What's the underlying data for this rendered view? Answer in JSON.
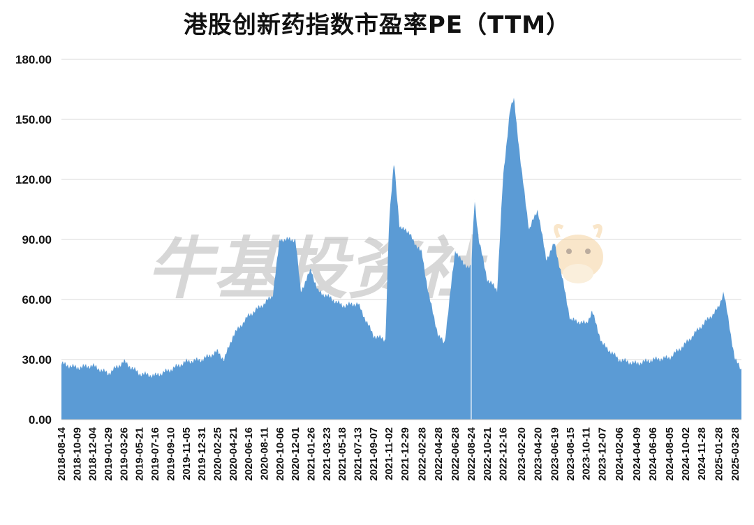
{
  "chart_data": {
    "type": "area",
    "title": "港股创新药指数市盈率PE（TTM）",
    "xlabel": "",
    "ylabel": "",
    "ylim": [
      0,
      180
    ],
    "yticks": [
      "0.00",
      "30.00",
      "60.00",
      "90.00",
      "120.00",
      "150.00",
      "180.00"
    ],
    "x_tick_labels": [
      "2018-08-14",
      "2018-10-09",
      "2018-12-04",
      "2019-01-29",
      "2019-03-26",
      "2019-05-21",
      "2019-07-16",
      "2019-09-10",
      "2019-11-05",
      "2019-12-31",
      "2020-02-25",
      "2020-04-21",
      "2020-06-16",
      "2020-08-11",
      "2020-10-06",
      "2020-12-01",
      "2021-01-26",
      "2021-03-23",
      "2021-05-18",
      "2021-07-13",
      "2021-09-07",
      "2021-11-02",
      "2021-12-29",
      "2022-02-28",
      "2022-04-28",
      "2022-06-28",
      "2022-08-24",
      "2022-10-21",
      "2022-12-16",
      "2023-02-20",
      "2023-04-20",
      "2023-06-19",
      "2023-08-15",
      "2023-10-11",
      "2023-12-07",
      "2024-02-06",
      "2024-04-09",
      "2024-06-06",
      "2024-08-05",
      "2024-10-02",
      "2024-11-28",
      "2025-01-28",
      "2025-03-28"
    ],
    "grid": true,
    "legend": "none",
    "color": "#5b9bd5",
    "series": [
      {
        "x": [
          "2018-08-14",
          "2018-10-09",
          "2018-12-04",
          "2019-01-29",
          "2019-03-26",
          "2019-05-21",
          "2019-07-16",
          "2019-09-10",
          "2019-11-05",
          "2019-12-31",
          "2020-02-25",
          "2020-03-20",
          "2020-04-21",
          "2020-06-16",
          "2020-08-11",
          "2020-09-10",
          "2020-10-06",
          "2020-12-01",
          "2020-12-20",
          "2021-01-26",
          "2021-02-20",
          "2021-03-23",
          "2021-05-18",
          "2021-07-13",
          "2021-09-07",
          "2021-10-20",
          "2021-11-02",
          "2021-11-20",
          "2021-12-10",
          "2021-12-29",
          "2022-02-28",
          "2022-03-25",
          "2022-04-28",
          "2022-05-20",
          "2022-06-28",
          "2022-07-25",
          "2022-08-24",
          "2022-09-05",
          "2022-09-20",
          "2022-10-21",
          "2022-11-25",
          "2022-12-16",
          "2023-01-10",
          "2023-01-25",
          "2023-02-20",
          "2023-03-20",
          "2023-04-20",
          "2023-05-20",
          "2023-06-19",
          "2023-07-15",
          "2023-08-15",
          "2023-10-11",
          "2023-11-01",
          "2023-12-07",
          "2024-02-06",
          "2024-04-09",
          "2024-06-06",
          "2024-08-05",
          "2024-10-02",
          "2024-11-28",
          "2025-01-10",
          "2025-01-28",
          "2025-02-15",
          "2025-03-28",
          "2025-04-20"
        ],
        "values": [
          28,
          26,
          27,
          23,
          29,
          23,
          22,
          25,
          29,
          30,
          34,
          30,
          42,
          52,
          58,
          62,
          90,
          90,
          64,
          75,
          64,
          62,
          57,
          58,
          42,
          40,
          98,
          130,
          95,
          96,
          83,
          62,
          42,
          38,
          85,
          78,
          76,
          110,
          90,
          70,
          65,
          120,
          155,
          160,
          125,
          95,
          105,
          80,
          88,
          72,
          50,
          48,
          54,
          38,
          30,
          28,
          30,
          31,
          38,
          47,
          53,
          56,
          64,
          30,
          25
        ]
      }
    ]
  },
  "watermark": "牛基投资社"
}
